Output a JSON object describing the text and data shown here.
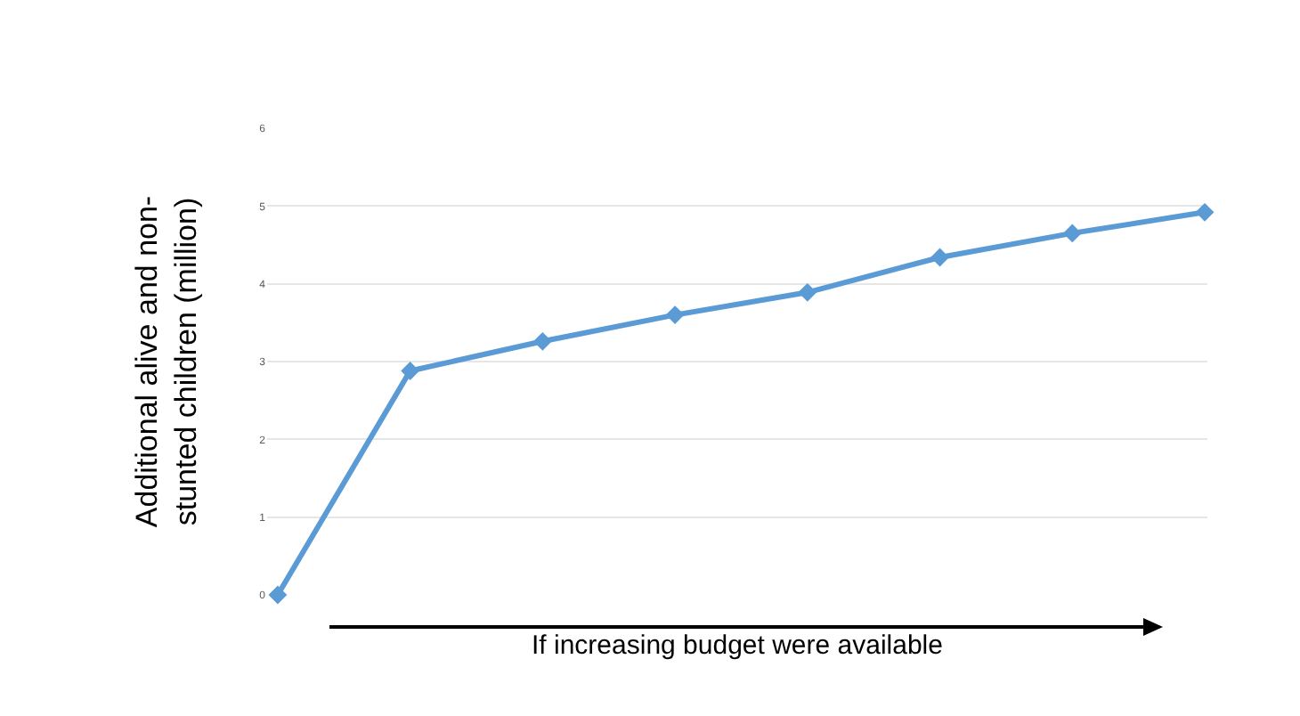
{
  "chart_data": {
    "type": "line",
    "xlabel": "If increasing budget were available",
    "ylabel": "Additional alive and non-stunted children (million)",
    "categories": [
      null,
      null,
      null,
      null,
      null,
      null,
      null,
      null
    ],
    "series": [
      {
        "color": "#5b9bd5",
        "values": [
          0,
          2.88,
          3.26,
          3.6,
          3.89,
          4.34,
          4.65,
          4.92
        ]
      }
    ],
    "ylim": [
      0,
      6
    ],
    "yticks": [
      0,
      1,
      2,
      3,
      4,
      5,
      6
    ],
    "grid": "y",
    "marker": "diamond",
    "line_style": "solid"
  }
}
